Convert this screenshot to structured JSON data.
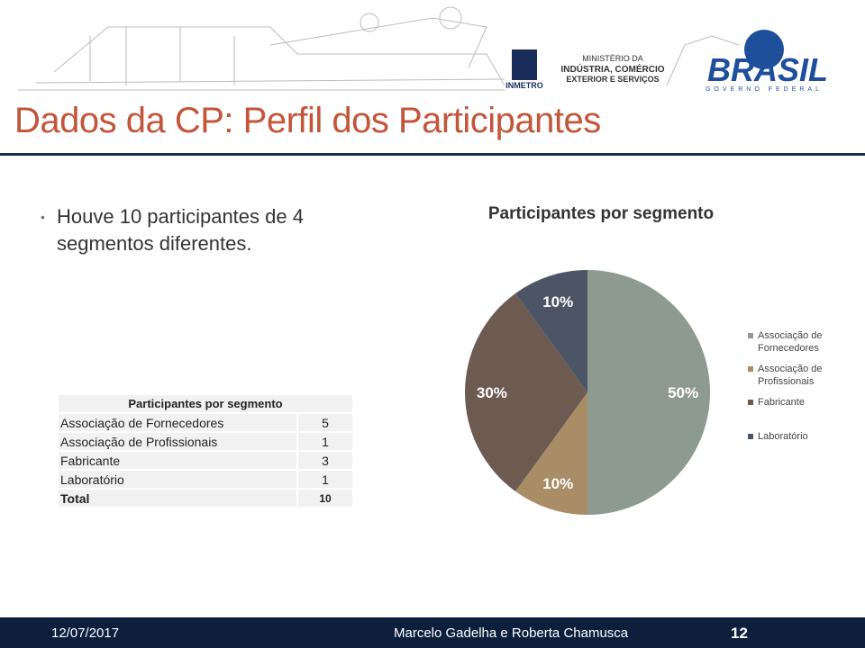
{
  "header": {
    "ministry": [
      "MINISTÉRIO DA",
      "INDÚSTRIA, COMÉRCIO",
      "EXTERIOR E SERVIÇOS"
    ],
    "inmetro": "INMETRO",
    "brasil": "BRASIL",
    "governo": "GOVERNO FEDERAL"
  },
  "title": "Dados da CP: Perfil dos Participantes",
  "bullet": "Houve 10 participantes de 4 segmentos diferentes.",
  "table": {
    "title": "Participantes por segmento",
    "rows": [
      [
        "Associação de Fornecedores",
        5
      ],
      [
        "Associação de Profissionais",
        1
      ],
      [
        "Fabricante",
        3
      ],
      [
        "Laboratório",
        1
      ],
      [
        "Total",
        10
      ]
    ]
  },
  "chart_data": {
    "type": "pie",
    "title": "Participantes por segmento",
    "categories": [
      "Associação de Fornecedores",
      "Associação de Profissionais",
      "Fabricante",
      "Laboratório"
    ],
    "values": [
      50,
      10,
      30,
      10
    ],
    "value_labels": [
      "50%",
      "10%",
      "30%",
      "10%"
    ],
    "colors": [
      "#8d9a8f",
      "#a88d66",
      "#6d5a51",
      "#4b5565"
    ],
    "legend": "right"
  },
  "footer": {
    "date": "12/07/2017",
    "authors": "Marcelo Gadelha e Roberta Chamusca",
    "page": "12"
  }
}
